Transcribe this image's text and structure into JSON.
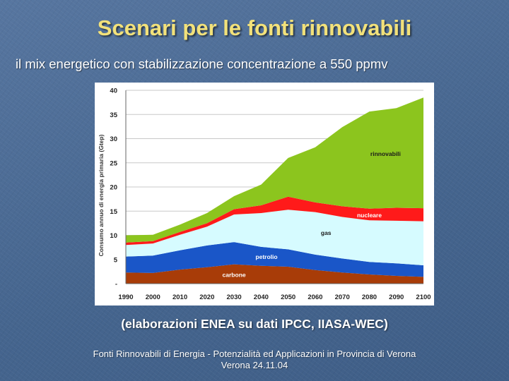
{
  "slide": {
    "title": "Scenari per le fonti rinnovabili",
    "subtitle": "il mix energetico con stabilizzazione concentrazione a 550 ppmv",
    "caption": "(elaborazioni ENEA su dati IPCC, IIASA-WEC)",
    "footer_line1": "Fonti Rinnovabili di Energia - Potenzialità ed Applicazioni in Provincia di Verona",
    "footer_line2": "Verona 24.11.04"
  },
  "chart_data": {
    "type": "area",
    "stacked": true,
    "ylabel": "Consumo annuo di energia primaria (Gtep)",
    "xlabel": "",
    "ylim": [
      0,
      40
    ],
    "y_ticks": [
      0,
      5,
      10,
      15,
      20,
      25,
      30,
      35,
      40
    ],
    "y_tick_labels": [
      "-",
      "5",
      "10",
      "15",
      "20",
      "25",
      "30",
      "35",
      "40"
    ],
    "x": [
      "1990",
      "2000",
      "2010",
      "2020",
      "2030",
      "2040",
      "2050",
      "2060",
      "2070",
      "2080",
      "2090",
      "2100"
    ],
    "grid": true,
    "series": [
      {
        "name": "carbone",
        "color": "#a83c08",
        "values": [
          2.3,
          2.2,
          2.9,
          3.4,
          4.0,
          3.7,
          3.5,
          2.8,
          2.3,
          1.9,
          1.6,
          1.4
        ]
      },
      {
        "name": "petrolio",
        "color": "#1a56c8",
        "values": [
          3.3,
          3.6,
          4.0,
          4.5,
          4.6,
          3.9,
          3.6,
          3.2,
          2.9,
          2.6,
          2.6,
          2.4
        ]
      },
      {
        "name": "gas",
        "color": "#d6fbff",
        "values": [
          2.4,
          2.5,
          3.2,
          3.9,
          5.7,
          7.0,
          8.2,
          8.8,
          8.6,
          8.6,
          8.8,
          9.1
        ]
      },
      {
        "name": "nucleare",
        "color": "#ff1a1a",
        "values": [
          0.5,
          0.5,
          0.6,
          0.7,
          1.1,
          1.6,
          2.7,
          2.0,
          2.2,
          2.4,
          2.7,
          2.7
        ]
      },
      {
        "name": "rinnovabili",
        "color": "#8cc51e",
        "values": [
          1.5,
          1.3,
          1.5,
          2.1,
          2.7,
          4.3,
          8.0,
          11.4,
          16.4,
          20.1,
          20.6,
          22.9
        ]
      }
    ]
  }
}
